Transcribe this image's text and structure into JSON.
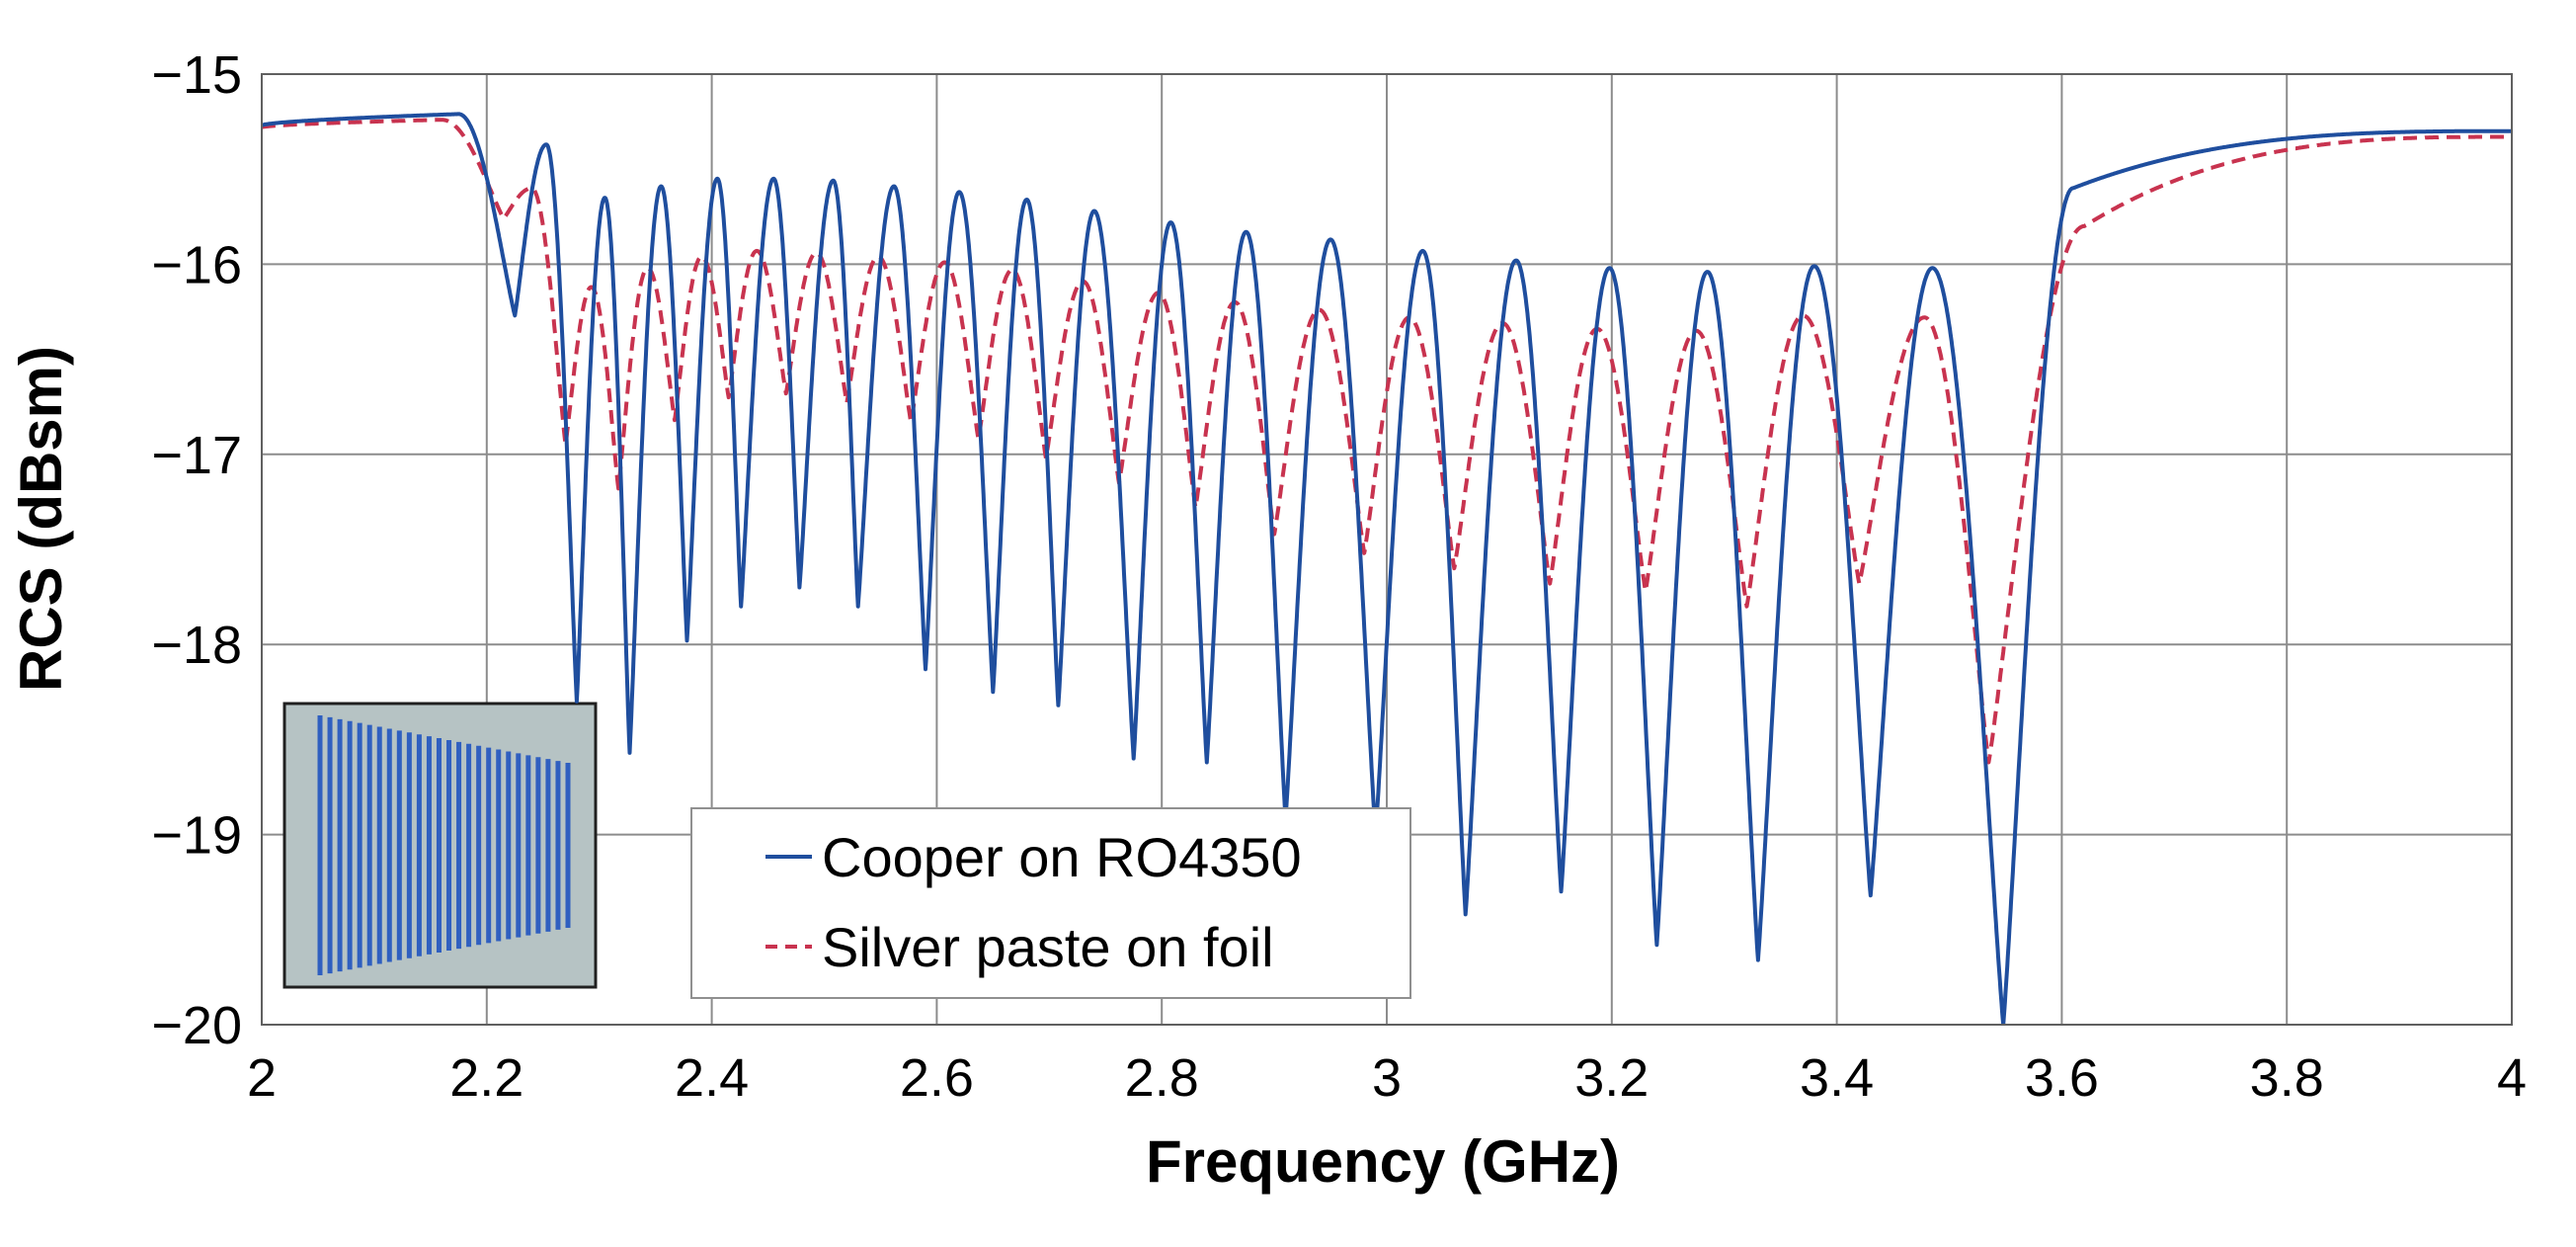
{
  "chart_data": {
    "type": "line",
    "title": "",
    "xlabel": "Frequency (GHz)",
    "ylabel": "RCS (dBsm)",
    "xlim": [
      2,
      4
    ],
    "ylim": [
      -20,
      -15
    ],
    "xticks": [
      2,
      2.2,
      2.4,
      2.6,
      2.8,
      3,
      3.2,
      3.4,
      3.6,
      3.8,
      4
    ],
    "xtick_labels": [
      "2",
      "2.2",
      "2.4",
      "2.6",
      "2.8",
      "3",
      "3.2",
      "3.4",
      "3.6",
      "3.8",
      "4"
    ],
    "yticks": [
      -15,
      -16,
      -17,
      -18,
      -19,
      -20
    ],
    "ytick_labels": [
      "−15",
      "−16",
      "−17",
      "−18",
      "−19",
      "−20"
    ],
    "grid": true,
    "legend_position": "bottom-center",
    "inset": "chipless tag with tapered vertical strip resonators",
    "series": [
      {
        "name": "Cooper on RO4350",
        "style": "solid",
        "color": "#1f4e9e",
        "baseline_low": -15.27,
        "baseline_high": -15.3,
        "band_start": 2.18,
        "band_end": 3.58,
        "dips": [
          {
            "f": 2.225,
            "depth": -16.27
          },
          {
            "f": 2.28,
            "depth": -18.3
          },
          {
            "f": 2.327,
            "depth": -18.57
          },
          {
            "f": 2.378,
            "depth": -17.98
          },
          {
            "f": 2.426,
            "depth": -17.8
          },
          {
            "f": 2.478,
            "depth": -17.7
          },
          {
            "f": 2.53,
            "depth": -17.8
          },
          {
            "f": 2.59,
            "depth": -18.13
          },
          {
            "f": 2.65,
            "depth": -18.25
          },
          {
            "f": 2.708,
            "depth": -18.32
          },
          {
            "f": 2.775,
            "depth": -18.6
          },
          {
            "f": 2.84,
            "depth": -18.62
          },
          {
            "f": 2.91,
            "depth": -18.92
          },
          {
            "f": 2.99,
            "depth": -19.0
          },
          {
            "f": 3.07,
            "depth": -19.42
          },
          {
            "f": 3.155,
            "depth": -19.3
          },
          {
            "f": 3.24,
            "depth": -19.58
          },
          {
            "f": 3.33,
            "depth": -19.66
          },
          {
            "f": 3.43,
            "depth": -19.32
          },
          {
            "f": 3.548,
            "depth": -20.0
          }
        ],
        "peaks": [
          {
            "f": 2.175,
            "value": -15.21
          },
          {
            "f": 2.253,
            "value": -15.37
          },
          {
            "f": 2.305,
            "value": -15.65
          },
          {
            "f": 2.355,
            "value": -15.59
          },
          {
            "f": 2.405,
            "value": -15.55
          },
          {
            "f": 2.455,
            "value": -15.55
          },
          {
            "f": 2.508,
            "value": -15.56
          },
          {
            "f": 2.562,
            "value": -15.59
          },
          {
            "f": 2.62,
            "value": -15.62
          },
          {
            "f": 2.68,
            "value": -15.66
          },
          {
            "f": 2.74,
            "value": -15.72
          },
          {
            "f": 2.808,
            "value": -15.78
          },
          {
            "f": 2.875,
            "value": -15.83
          },
          {
            "f": 2.95,
            "value": -15.87
          },
          {
            "f": 3.032,
            "value": -15.93
          },
          {
            "f": 3.115,
            "value": -15.98
          },
          {
            "f": 3.198,
            "value": -16.02
          },
          {
            "f": 3.285,
            "value": -16.04
          },
          {
            "f": 3.38,
            "value": -16.01
          },
          {
            "f": 3.485,
            "value": -16.02
          },
          {
            "f": 3.61,
            "value": -15.6
          }
        ]
      },
      {
        "name": "Silver paste on foil",
        "style": "dashed",
        "color": "#c8334f",
        "baseline_low": -15.28,
        "baseline_high": -15.33,
        "band_start": 2.17,
        "band_end": 3.58,
        "dips": [
          {
            "f": 2.215,
            "depth": -15.76
          },
          {
            "f": 2.27,
            "depth": -16.95
          },
          {
            "f": 2.317,
            "depth": -17.18
          },
          {
            "f": 2.367,
            "depth": -16.82
          },
          {
            "f": 2.415,
            "depth": -16.7
          },
          {
            "f": 2.466,
            "depth": -16.68
          },
          {
            "f": 2.52,
            "depth": -16.73
          },
          {
            "f": 2.577,
            "depth": -16.83
          },
          {
            "f": 2.637,
            "depth": -16.92
          },
          {
            "f": 2.697,
            "depth": -17.02
          },
          {
            "f": 2.762,
            "depth": -17.15
          },
          {
            "f": 2.83,
            "depth": -17.28
          },
          {
            "f": 2.9,
            "depth": -17.42
          },
          {
            "f": 2.98,
            "depth": -17.52
          },
          {
            "f": 3.06,
            "depth": -17.6
          },
          {
            "f": 3.145,
            "depth": -17.68
          },
          {
            "f": 3.23,
            "depth": -17.72
          },
          {
            "f": 3.32,
            "depth": -17.8
          },
          {
            "f": 3.42,
            "depth": -17.68
          },
          {
            "f": 3.535,
            "depth": -18.62
          }
        ],
        "peaks": [
          {
            "f": 2.16,
            "value": -15.24
          },
          {
            "f": 2.24,
            "value": -15.6
          },
          {
            "f": 2.293,
            "value": -16.12
          },
          {
            "f": 2.343,
            "value": -16.02
          },
          {
            "f": 2.391,
            "value": -15.96
          },
          {
            "f": 2.44,
            "value": -15.93
          },
          {
            "f": 2.493,
            "value": -15.94
          },
          {
            "f": 2.548,
            "value": -15.96
          },
          {
            "f": 2.607,
            "value": -15.99
          },
          {
            "f": 2.667,
            "value": -16.03
          },
          {
            "f": 2.73,
            "value": -16.09
          },
          {
            "f": 2.797,
            "value": -16.15
          },
          {
            "f": 2.865,
            "value": -16.2
          },
          {
            "f": 2.94,
            "value": -16.24
          },
          {
            "f": 3.02,
            "value": -16.28
          },
          {
            "f": 3.103,
            "value": -16.31
          },
          {
            "f": 3.187,
            "value": -16.34
          },
          {
            "f": 3.275,
            "value": -16.35
          },
          {
            "f": 3.37,
            "value": -16.27
          },
          {
            "f": 3.478,
            "value": -16.28
          },
          {
            "f": 3.62,
            "value": -15.8
          }
        ]
      }
    ]
  }
}
